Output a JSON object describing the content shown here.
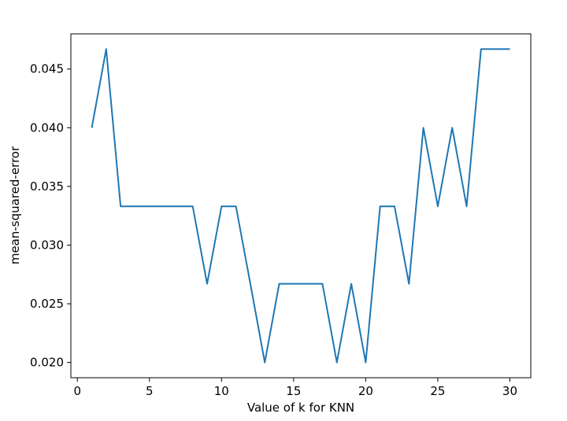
{
  "chart_data": {
    "type": "line",
    "title": "",
    "xlabel": "Value of k for KNN",
    "ylabel": "mean-squared-error",
    "xlim": [
      -0.45,
      31.45
    ],
    "ylim": [
      0.0187,
      0.048
    ],
    "xticks": [
      0,
      5,
      10,
      15,
      20,
      25,
      30
    ],
    "xtick_labels": [
      "0",
      "5",
      "10",
      "15",
      "20",
      "25",
      "30"
    ],
    "yticks": [
      0.02,
      0.025,
      0.03,
      0.035,
      0.04,
      0.045
    ],
    "ytick_labels": [
      "0.020",
      "0.025",
      "0.030",
      "0.035",
      "0.040",
      "0.045"
    ],
    "grid": false,
    "legend": "none",
    "series": [
      {
        "color": "#1f77b4",
        "x": [
          1,
          2,
          3,
          4,
          5,
          6,
          7,
          8,
          9,
          10,
          11,
          12,
          13,
          14,
          15,
          16,
          17,
          18,
          19,
          20,
          21,
          22,
          23,
          24,
          25,
          26,
          27,
          28,
          29,
          30
        ],
        "y": [
          0.04,
          0.0467,
          0.0333,
          0.0333,
          0.0333,
          0.0333,
          0.0333,
          0.0333,
          0.0267,
          0.0333,
          0.0333,
          0.0267,
          0.02,
          0.0267,
          0.0267,
          0.0267,
          0.0267,
          0.02,
          0.0267,
          0.02,
          0.0333,
          0.0333,
          0.0267,
          0.04,
          0.0333,
          0.04,
          0.0333,
          0.0467,
          0.0467,
          0.0467
        ]
      }
    ]
  }
}
